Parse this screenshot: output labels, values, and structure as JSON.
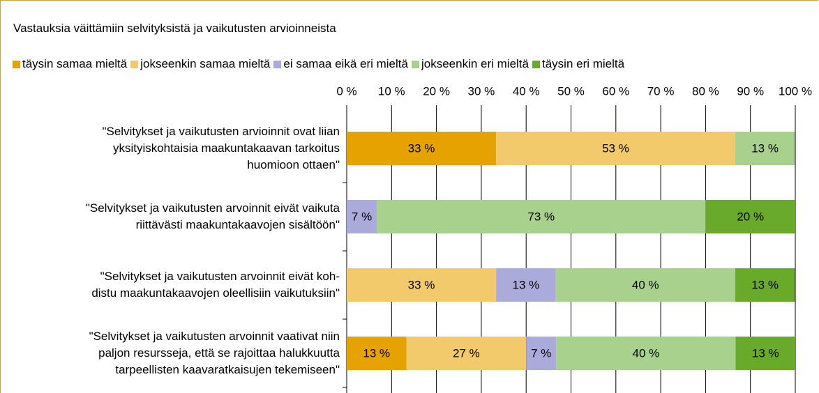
{
  "chart_data": {
    "type": "stacked-bar-horizontal",
    "title": "Vastauksia väittämiin selvityksistä ja vaikutusten arvioinneista",
    "categories": [
      "\"Selvitykset ja vaikutusten arvioinnit ovat liian\nyksityiskohtaisia maakuntakaavan tarkoitus\nhuomioon ottaen\"",
      "\"Selvitykset ja vaikutusten arvoinnit eivät vaikuta\nriittävästi maakuntakaavojen sisältöön\"",
      "\"Selvitykset ja vaikutusten arvoinnit eivät koh-\ndistu maakuntakaavojen oleellisiin vaikutuksiin\"",
      "\"Selvitykset ja vaikutusten arvoinnit vaativat niin\npaljon resursseja, että se rajoittaa halukkuutta\ntarpeellisten kaavaratkaisujen tekemiseen\""
    ],
    "series": [
      {
        "name": "täysin samaa mieltä",
        "color": "#e6a300",
        "values": [
          33.3,
          null,
          null,
          13.3
        ],
        "value_labels": [
          "33 %",
          null,
          null,
          "13 %"
        ]
      },
      {
        "name": "jokseenkin samaa mieltä",
        "color": "#f2c96b",
        "values": [
          53.3,
          null,
          33.3,
          26.7
        ],
        "value_labels": [
          "53 %",
          null,
          "33 %",
          "27 %"
        ]
      },
      {
        "name": "ei samaa eikä eri mieltä",
        "color": "#aaaadb",
        "values": [
          null,
          6.7,
          13.3,
          6.7
        ],
        "value_labels": [
          null,
          "7 %",
          "13 %",
          "7 %"
        ]
      },
      {
        "name": "jokseenkin eri mieltä",
        "color": "#a9d18e",
        "values": [
          13.3,
          73.3,
          40,
          40
        ],
        "value_labels": [
          "13 %",
          "73 %",
          "40 %",
          "40 %"
        ]
      },
      {
        "name": "täysin eri mieltä",
        "color": "#6aaa2b",
        "values": [
          null,
          20,
          13.3,
          13.3
        ],
        "value_labels": [
          null,
          "20 %",
          "13 %",
          "13 %"
        ]
      }
    ],
    "xlim": [
      0,
      100
    ],
    "xticks": [
      {
        "value": 0,
        "label": "0 %"
      },
      {
        "value": 10,
        "label": "10 %"
      },
      {
        "value": 20,
        "label": "20 %"
      },
      {
        "value": 30,
        "label": "30 %"
      },
      {
        "value": 40,
        "label": "40 %"
      },
      {
        "value": 50,
        "label": "50 %"
      },
      {
        "value": 60,
        "label": "60 %"
      },
      {
        "value": 70,
        "label": "70 %"
      },
      {
        "value": 80,
        "label": "80 %"
      },
      {
        "value": 90,
        "label": "90 %"
      },
      {
        "value": 100,
        "label": "100 %"
      }
    ],
    "grid": true
  }
}
